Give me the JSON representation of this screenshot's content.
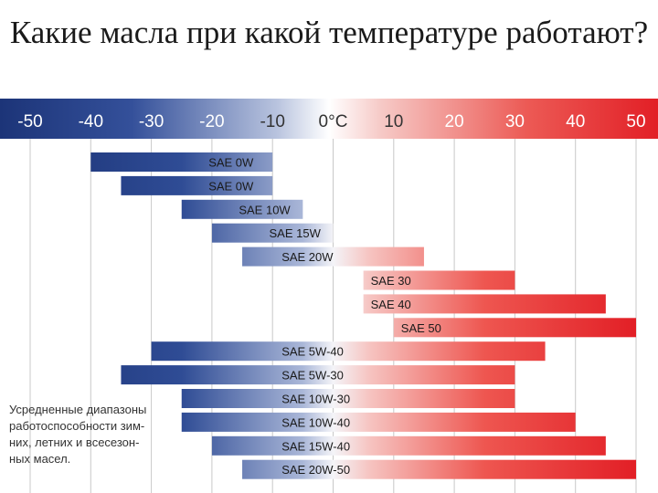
{
  "title": "Какие масла при какой температуре работают?",
  "note": "Усредненные диапазоны\nработоспособности зим-\nних, летних и всесезон-\nных масел.",
  "colors": {
    "cold": "#1f3f84",
    "hot": "#e8272f",
    "grid": "#c8c8c8"
  },
  "chart_data": {
    "type": "bar",
    "title": "Какие масла при какой температуре работают?",
    "xlabel": "°C",
    "ylabel": "",
    "xlim": [
      -50,
      50
    ],
    "xticks": [
      "-50",
      "-40",
      "-30",
      "-20",
      "-10",
      "0°C",
      "10",
      "20",
      "30",
      "40",
      "50"
    ],
    "xtick_values": [
      -50,
      -40,
      -30,
      -20,
      -10,
      0,
      10,
      20,
      30,
      40,
      50
    ],
    "orientation": "horizontal-range",
    "categories": [
      "SAE 0W",
      "SAE 0W",
      "SAE 10W",
      "SAE 15W",
      "SAE 20W",
      "SAE 30",
      "SAE 40",
      "SAE 50",
      "SAE 5W-40",
      "SAE 5W-30",
      "SAE 10W-30",
      "SAE 10W-40",
      "SAE 15W-40",
      "SAE 20W-50"
    ],
    "ranges": [
      [
        -40,
        -10
      ],
      [
        -35,
        -10
      ],
      [
        -25,
        -5
      ],
      [
        -20,
        0
      ],
      [
        -15,
        15
      ],
      [
        5,
        30
      ],
      [
        5,
        45
      ],
      [
        10,
        50
      ],
      [
        -30,
        35
      ],
      [
        -35,
        30
      ],
      [
        -25,
        30
      ],
      [
        -25,
        40
      ],
      [
        -20,
        45
      ],
      [
        -15,
        50
      ]
    ],
    "grid": true
  }
}
